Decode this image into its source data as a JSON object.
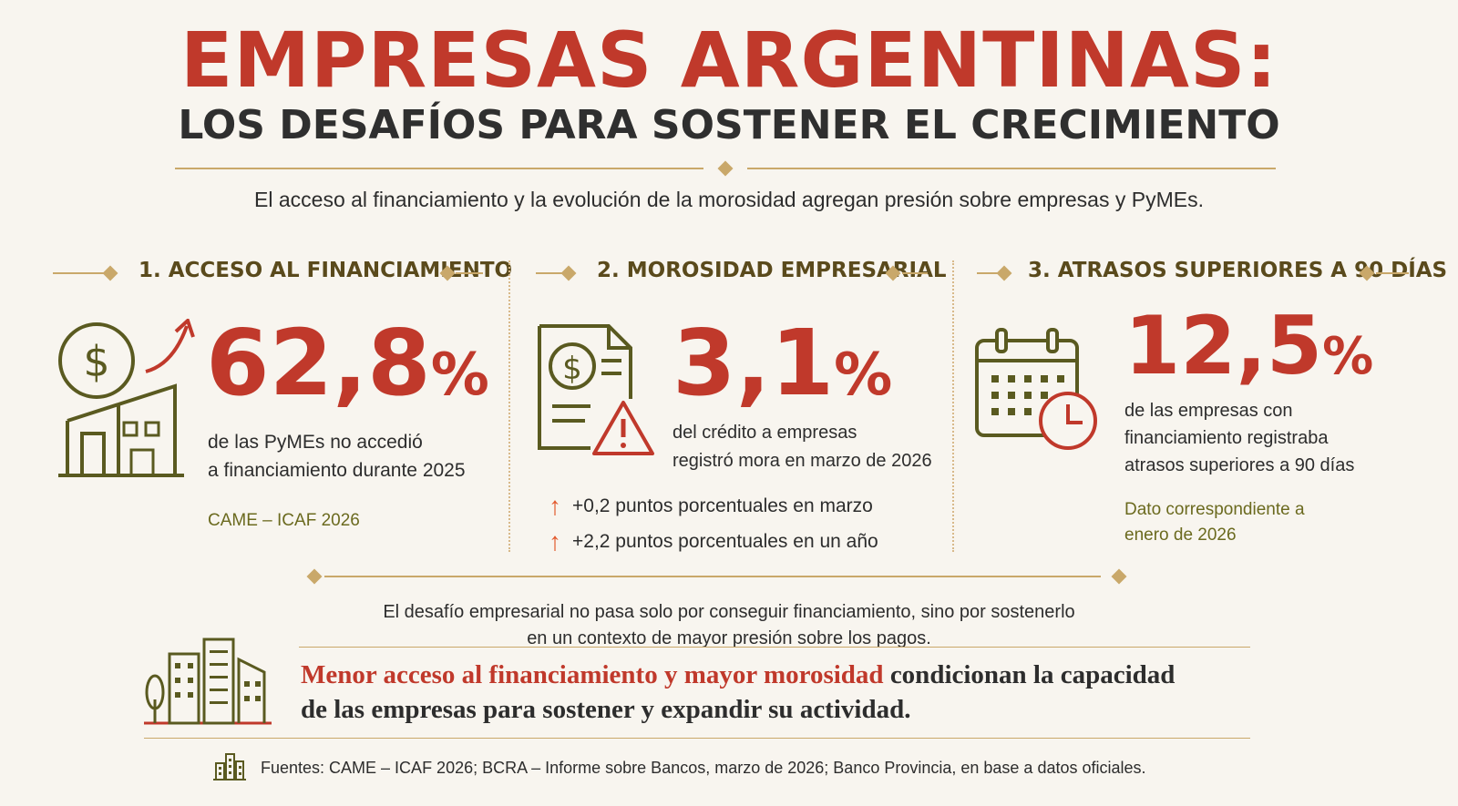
{
  "header": {
    "title": "EMPRESAS ARGENTINAS:",
    "subtitle": "LOS DESAFÍOS PARA SOSTENER EL CRECIMIENTO",
    "intro": "El acceso al financiamiento y la evolución de la morosidad agregan presión sobre empresas y PyMEs."
  },
  "sections": [
    {
      "title": "1. ACCESO AL FINANCIAMIENTO",
      "value": "62,8",
      "unit": "%",
      "line1": "de las PyMEs no accedió",
      "line2": "a financiamiento durante 2025",
      "source": "CAME – ICAF 2026",
      "icon": "money-building-icon"
    },
    {
      "title": "2. MOROSIDAD EMPRESARIAL",
      "value": "3,1",
      "unit": "%",
      "line1": "del crédito a empresas",
      "line2": "registró mora en marzo de 2026",
      "bullets": [
        {
          "label": "+0,2 puntos porcentuales en marzo"
        },
        {
          "label": "+2,2 puntos porcentuales en un año"
        }
      ],
      "icon": "document-warning-icon"
    },
    {
      "title": "3. ATRASOS SUPERIORES A 90 DÍAS",
      "value": "12,5",
      "unit": "%",
      "line1": "de las empresas con",
      "line2": "financiamiento registraba",
      "line3": "atrasos superiores a 90 días",
      "note1": "Dato correspondiente a",
      "note2": "enero de 2026",
      "icon": "calendar-clock-icon"
    }
  ],
  "note": {
    "line1": "El desafío empresarial no pasa solo por conseguir financiamiento, sino por sostenerlo",
    "line2": "en un contexto de mayor presión sobre los pagos."
  },
  "callout": {
    "accent": "Menor acceso al financiamiento y mayor morosidad",
    "rest": " condicionan la capacidad",
    "line2": "de las empresas para sostener y expandir su actividad."
  },
  "footer": {
    "text": "Fuentes: CAME – ICAF 2026; BCRA – Informe sobre Bancos, marzo de 2026; Banco Provincia, en base a datos oficiales."
  },
  "colors": {
    "accent": "#c0392b",
    "gold": "#c9a86a",
    "olive": "#5a5a20",
    "background": "#f8f5ef"
  }
}
